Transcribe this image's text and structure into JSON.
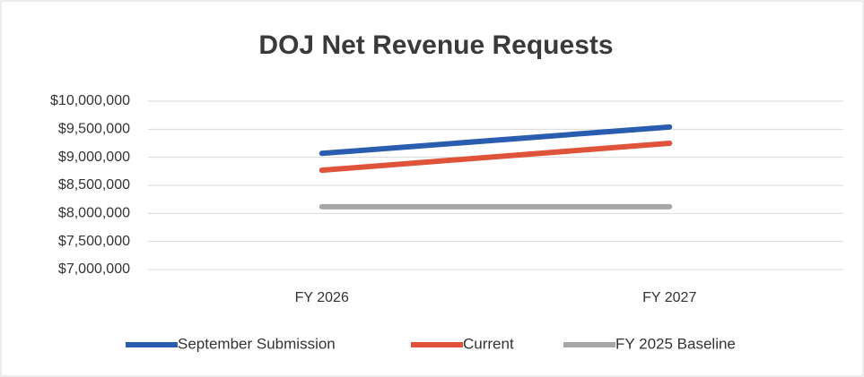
{
  "chart_data": {
    "type": "line",
    "title": "DOJ Net Revenue Requests",
    "categories": [
      "FY 2026",
      "FY 2027"
    ],
    "series": [
      {
        "name": "September Submission",
        "color": "#2a5db0",
        "values": [
          9070000,
          9540000
        ]
      },
      {
        "name": "Current",
        "color": "#e0533b",
        "values": [
          8770000,
          9250000
        ]
      },
      {
        "name": "FY 2025 Baseline",
        "color": "#a6a6a6",
        "values": [
          8120000,
          8120000
        ]
      }
    ],
    "ylim": [
      7000000,
      10000000
    ],
    "yticks": [
      {
        "value": 7000000,
        "label": "$7,000,000"
      },
      {
        "value": 7500000,
        "label": "$7,500,000"
      },
      {
        "value": 8000000,
        "label": "$8,000,000"
      },
      {
        "value": 8500000,
        "label": "$8,500,000"
      },
      {
        "value": 9000000,
        "label": "$9,000,000"
      },
      {
        "value": 9500000,
        "label": "$9,500,000"
      },
      {
        "value": 10000000,
        "label": "$10,000,000"
      }
    ],
    "grid": true,
    "legend": "bottom"
  }
}
